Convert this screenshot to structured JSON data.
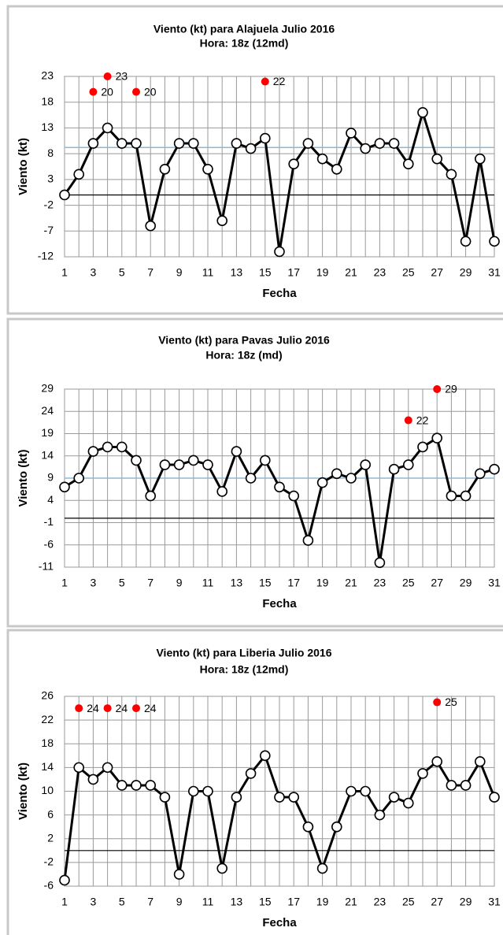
{
  "chart_data": [
    {
      "type": "line",
      "title": "Viento (kt) para Alajuela Julio 2016",
      "subtitle": "Hora: 18z (12md)",
      "x_label": "Fecha",
      "y_label": "Viento (kt)",
      "x": [
        1,
        2,
        3,
        4,
        5,
        6,
        7,
        8,
        9,
        10,
        11,
        12,
        13,
        14,
        15,
        16,
        17,
        18,
        19,
        20,
        21,
        22,
        23,
        24,
        25,
        26,
        27,
        28,
        29,
        30,
        31
      ],
      "series": [
        {
          "color": "#000000",
          "values": [
            0,
            4,
            10,
            13,
            10,
            10,
            -6,
            5,
            10,
            10,
            5,
            -5,
            10,
            9,
            11,
            -11,
            6,
            10,
            7,
            5,
            12,
            9,
            10,
            10,
            6,
            16,
            7,
            4,
            -9,
            7,
            -9
          ]
        },
        {
          "color": "#ff0000",
          "values": [
            null,
            null,
            20,
            23,
            null,
            20,
            null,
            null,
            null,
            null,
            null,
            null,
            null,
            null,
            22,
            null,
            null,
            null,
            null,
            null,
            null,
            null,
            null,
            null,
            null,
            null,
            null,
            null,
            null,
            null,
            null
          ]
        }
      ],
      "reference_line": {
        "value": 9.2,
        "color": "#8fb8d0"
      },
      "xlim": [
        1,
        31
      ],
      "xticks": [
        1,
        3,
        5,
        7,
        9,
        11,
        13,
        15,
        17,
        19,
        21,
        23,
        25,
        27,
        29,
        31
      ],
      "ylim": [
        -12,
        23
      ],
      "yticks": [
        -12,
        -7,
        -2,
        3,
        8,
        13,
        18,
        23
      ],
      "grid": true
    },
    {
      "type": "line",
      "title": "Viento (kt) para Pavas Julio 2016",
      "subtitle": "Hora: 18z (md)",
      "x_label": "Fecha",
      "y_label": "Viento (kt)",
      "x": [
        1,
        2,
        3,
        4,
        5,
        6,
        7,
        8,
        9,
        10,
        11,
        12,
        13,
        14,
        15,
        16,
        17,
        18,
        19,
        20,
        21,
        22,
        23,
        24,
        25,
        26,
        27,
        28,
        29,
        30,
        31
      ],
      "series": [
        {
          "color": "#000000",
          "values": [
            7,
            9,
            15,
            16,
            16,
            13,
            5,
            12,
            12,
            13,
            12,
            6,
            15,
            9,
            13,
            7,
            5,
            -5,
            8,
            10,
            9,
            12,
            -10,
            11,
            12,
            16,
            18,
            5,
            5,
            10,
            11
          ]
        },
        {
          "color": "#ff0000",
          "values": [
            null,
            null,
            null,
            null,
            null,
            null,
            null,
            null,
            null,
            null,
            null,
            null,
            null,
            null,
            null,
            null,
            null,
            null,
            null,
            null,
            null,
            null,
            null,
            null,
            22,
            null,
            29,
            null,
            null,
            null,
            null
          ]
        }
      ],
      "reference_line": {
        "value": 9,
        "color": "#8fb8d0"
      },
      "xlim": [
        1,
        31
      ],
      "xticks": [
        1,
        3,
        5,
        7,
        9,
        11,
        13,
        15,
        17,
        19,
        21,
        23,
        25,
        27,
        29,
        31
      ],
      "ylim": [
        -11,
        29
      ],
      "yticks": [
        -11,
        -6,
        -1,
        4,
        9,
        14,
        19,
        24,
        29
      ],
      "grid": true
    },
    {
      "type": "line",
      "title": "Viento (kt) para Liberia Julio 2016",
      "subtitle": "Hora: 18z (12md)",
      "x_label": "Fecha",
      "y_label": "Viento (kt)",
      "x": [
        1,
        2,
        3,
        4,
        5,
        6,
        7,
        8,
        9,
        10,
        11,
        12,
        13,
        14,
        15,
        16,
        17,
        18,
        19,
        20,
        21,
        22,
        23,
        24,
        25,
        26,
        27,
        28,
        29,
        30,
        31
      ],
      "series": [
        {
          "color": "#000000",
          "values": [
            -5,
            14,
            12,
            14,
            11,
            11,
            11,
            9,
            -4,
            10,
            10,
            -3,
            9,
            13,
            16,
            9,
            9,
            4,
            -3,
            4,
            10,
            10,
            6,
            9,
            8,
            13,
            15,
            11,
            11,
            15,
            9
          ]
        },
        {
          "color": "#ff0000",
          "values": [
            null,
            24,
            null,
            24,
            null,
            24,
            null,
            null,
            null,
            null,
            null,
            null,
            null,
            null,
            null,
            null,
            null,
            null,
            null,
            null,
            null,
            null,
            null,
            null,
            null,
            null,
            25,
            null,
            null,
            null,
            null
          ]
        }
      ],
      "xlim": [
        1,
        31
      ],
      "xticks": [
        1,
        3,
        5,
        7,
        9,
        11,
        13,
        15,
        17,
        19,
        21,
        23,
        25,
        27,
        29,
        31
      ],
      "ylim": [
        -6,
        26
      ],
      "yticks": [
        -6,
        -2,
        2,
        6,
        10,
        14,
        18,
        22,
        26
      ],
      "grid": true
    }
  ]
}
